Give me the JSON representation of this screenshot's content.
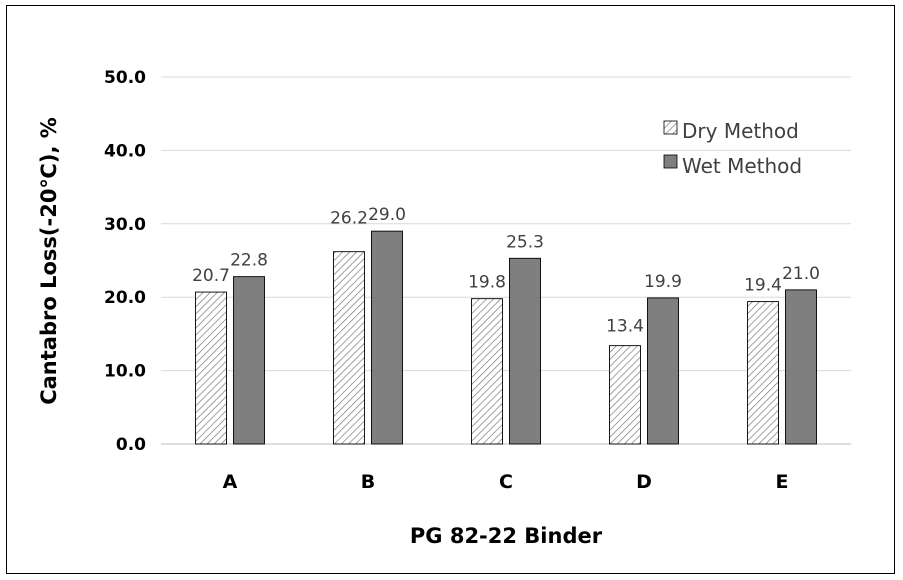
{
  "chart_data": {
    "type": "bar",
    "categories": [
      "A",
      "B",
      "C",
      "D",
      "E"
    ],
    "series": [
      {
        "name": "Dry Method",
        "values": [
          20.7,
          26.2,
          19.8,
          13.4,
          19.4
        ],
        "pattern": "diagonal-hatch"
      },
      {
        "name": "Wet Method",
        "values": [
          22.8,
          29.0,
          25.3,
          19.9,
          21.0
        ],
        "color": "#7f7f7f"
      }
    ],
    "data_labels": [
      [
        "20.7",
        "26.2",
        "19.8",
        "13.4",
        "19.4"
      ],
      [
        "22.8",
        "29.0",
        "25.3",
        "19.9",
        "21.0"
      ]
    ],
    "xlabel": "PG 82-22 Binder",
    "ylabel": "Cantabro Loss(-20℃), %",
    "ylim": [
      0,
      50
    ],
    "yticks": [
      "0.0",
      "10.0",
      "20.0",
      "30.0",
      "40.0",
      "50.0"
    ],
    "grid": true,
    "legend_position": "top-right"
  }
}
